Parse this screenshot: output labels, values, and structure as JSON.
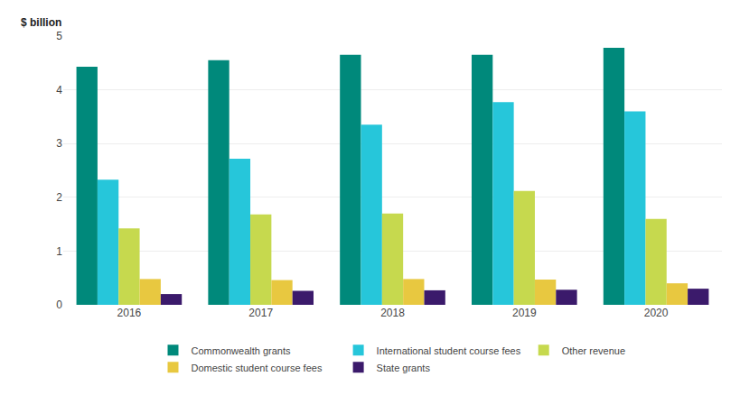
{
  "chart_data": {
    "type": "bar",
    "ylabel": "$ billion",
    "categories": [
      "2016",
      "2017",
      "2018",
      "2019",
      "2020"
    ],
    "series": [
      {
        "name": "Commonwealth grants",
        "color": "#00897B",
        "values": [
          4.43,
          4.55,
          4.65,
          4.65,
          4.78
        ]
      },
      {
        "name": "International student course fees",
        "color": "#26C6DA",
        "values": [
          2.33,
          2.72,
          3.35,
          3.77,
          3.6
        ]
      },
      {
        "name": "Other revenue",
        "color": "#C6D94E",
        "values": [
          1.42,
          1.68,
          1.7,
          2.12,
          1.6
        ]
      },
      {
        "name": "Domestic student course fees",
        "color": "#E8C840",
        "values": [
          0.48,
          0.46,
          0.48,
          0.47,
          0.4
        ]
      },
      {
        "name": "State grants",
        "color": "#3B1A6B",
        "values": [
          0.2,
          0.26,
          0.27,
          0.28,
          0.3
        ]
      }
    ],
    "ylim": [
      0,
      5
    ],
    "yticks": [
      0,
      1,
      2,
      3,
      4,
      5
    ],
    "grid": true,
    "legend": "bottom"
  }
}
